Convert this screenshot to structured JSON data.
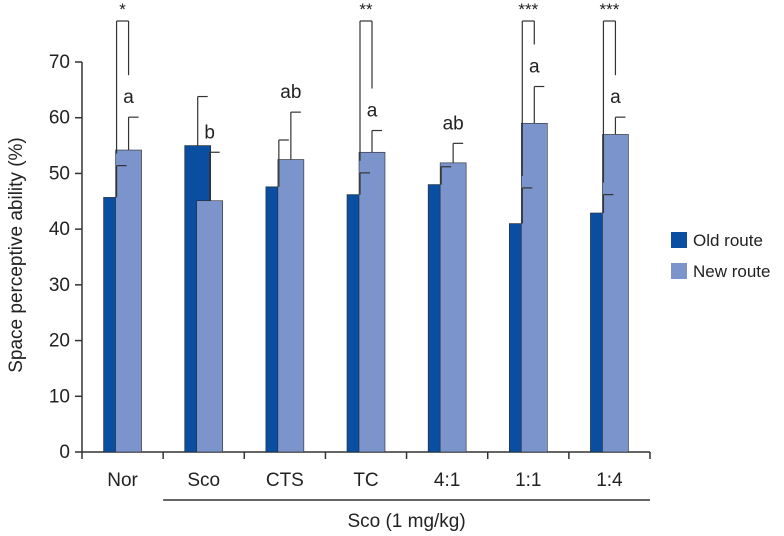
{
  "chart_data": {
    "type": "bar",
    "title": "",
    "xlabel": "Sco (1 mg/kg)",
    "ylabel": "Space perceptive ability (%)",
    "ylim": [
      0,
      70
    ],
    "yticks": [
      0,
      10,
      20,
      30,
      40,
      50,
      60,
      70
    ],
    "grid": false,
    "legend_position": "right",
    "categories": [
      "Nor",
      "Sco",
      "CTS",
      "TC",
      "4:1",
      "1:1",
      "1:4"
    ],
    "series": [
      {
        "name": "Old route",
        "color": "#0a4ea1",
        "values": [
          45.7,
          55.0,
          47.6,
          46.2,
          48.0,
          41.0,
          42.9
        ],
        "errors": [
          5.7,
          8.8,
          8.4,
          3.9,
          3.2,
          6.4,
          3.3
        ]
      },
      {
        "name": "New route",
        "color": "#7b94cb",
        "values": [
          54.2,
          45.1,
          52.5,
          53.8,
          51.9,
          59.0,
          57.0
        ],
        "errors": [
          5.9,
          8.7,
          8.5,
          3.9,
          3.5,
          6.6,
          3.1
        ]
      }
    ],
    "letters": [
      "a",
      "b",
      "ab",
      "a",
      "ab",
      "a",
      "a"
    ],
    "significance": [
      {
        "category": "Nor",
        "label": "*"
      },
      {
        "category": "TC",
        "label": "**"
      },
      {
        "category": "1:1",
        "label": "***"
      },
      {
        "category": "1:4",
        "label": "***"
      }
    ],
    "group_bracket": {
      "label": "Sco (1 mg/kg)",
      "from": "Sco",
      "to": "1:4"
    }
  }
}
